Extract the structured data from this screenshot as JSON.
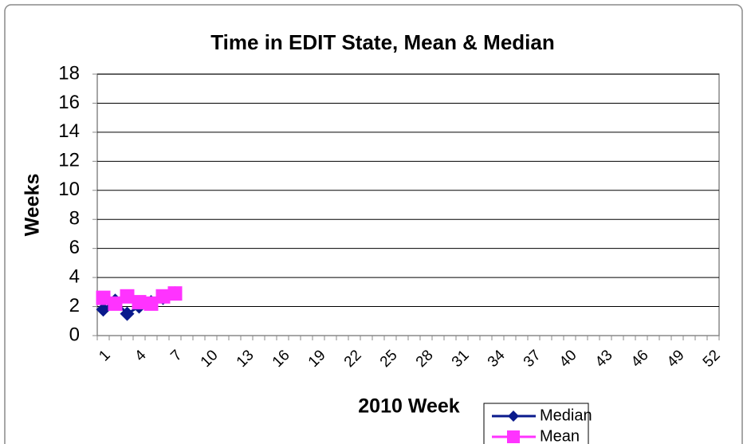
{
  "chart_data": {
    "type": "line",
    "title": "Time in EDIT State, Mean & Median",
    "x_label": "2010 Week",
    "y_label": "Weeks",
    "categories": [
      1,
      null,
      null,
      4,
      null,
      null,
      7,
      null,
      null,
      10,
      null,
      null,
      13,
      null,
      null,
      16,
      null,
      null,
      19,
      null,
      null,
      22,
      null,
      null,
      25,
      null,
      null,
      28,
      null,
      null,
      31,
      null,
      null,
      34,
      null,
      null,
      37,
      null,
      null,
      40,
      null,
      null,
      43,
      null,
      null,
      46,
      null,
      null,
      49,
      null,
      null,
      52
    ],
    "series": [
      {
        "name": "Median",
        "color": "#0a1a8c",
        "marker": "diamond",
        "values": [
          1.8,
          2.4,
          1.5,
          2.0,
          2.3,
          2.6,
          2.9,
          null,
          null,
          null,
          null,
          null,
          null,
          null,
          null,
          null,
          null,
          null,
          null,
          null,
          null,
          null,
          null,
          null,
          null,
          null,
          null,
          null,
          null,
          null,
          null,
          null,
          null,
          null,
          null,
          null,
          null,
          null,
          null,
          null,
          null,
          null,
          null,
          null,
          null,
          null,
          null,
          null,
          null,
          null,
          null,
          null
        ]
      },
      {
        "name": "Mean",
        "color": "#ff33ff",
        "marker": "square",
        "values": [
          2.6,
          2.2,
          2.7,
          2.3,
          2.2,
          2.7,
          2.9,
          null,
          null,
          null,
          null,
          null,
          null,
          null,
          null,
          null,
          null,
          null,
          null,
          null,
          null,
          null,
          null,
          null,
          null,
          null,
          null,
          null,
          null,
          null,
          null,
          null,
          null,
          null,
          null,
          null,
          null,
          null,
          null,
          null,
          null,
          null,
          null,
          null,
          null,
          null,
          null,
          null,
          null,
          null,
          null,
          null
        ]
      }
    ],
    "ylim": [
      0,
      18
    ],
    "yticks": [
      0,
      2,
      4,
      6,
      8,
      10,
      12,
      14,
      16,
      18
    ],
    "grid": true
  }
}
